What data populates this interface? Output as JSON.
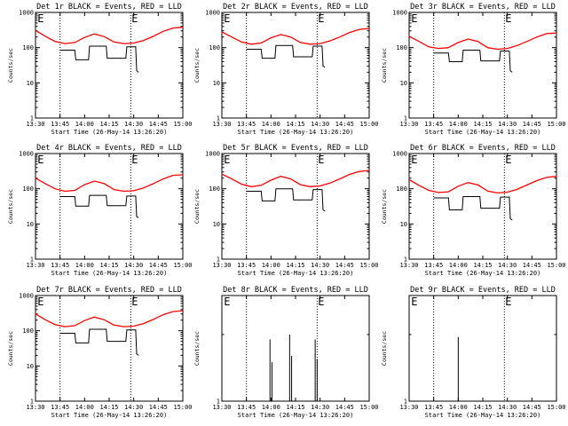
{
  "figure": {
    "background": "#ffffff",
    "events_color": "#000000",
    "lld_color": "#ff0000",
    "x_tick_labels": [
      "13:30",
      "13:45",
      "14:00",
      "14:15",
      "14:30",
      "14:45",
      "15:00"
    ],
    "y_tick_labels": [
      "1",
      "10",
      "100",
      "1000"
    ],
    "y_label": "Counts/sec",
    "x_label": "Start Time (26-May-14 13:26:20)",
    "e_marker": "E"
  },
  "chart_data": [
    {
      "type": "line",
      "title": "Det 1r BLACK = Events, RED = LLD",
      "ylim": [
        1,
        1000
      ],
      "y_scale": "log",
      "series": [
        {
          "name": "Events",
          "color": "#000000",
          "x": [
            13.75,
            13.9,
            13.91,
            14.04,
            14.05,
            14.22,
            14.23,
            14.42,
            14.43,
            14.52,
            14.53,
            14.55
          ],
          "y": [
            85,
            85,
            45,
            45,
            110,
            110,
            50,
            50,
            105,
            105,
            22,
            20
          ]
        },
        {
          "name": "LLD",
          "color": "#ff0000",
          "x": [
            13.5,
            13.6,
            13.7,
            13.8,
            13.9,
            14.0,
            14.1,
            14.2,
            14.3,
            14.4,
            14.5,
            14.6,
            14.7,
            14.8,
            14.9,
            15.0
          ],
          "y": [
            310,
            210,
            150,
            130,
            140,
            195,
            245,
            205,
            145,
            130,
            135,
            160,
            210,
            290,
            360,
            380
          ]
        }
      ]
    },
    {
      "type": "line",
      "title": "Det 2r BLACK = Events, RED = LLD",
      "ylim": [
        1,
        1000
      ],
      "y_scale": "log",
      "series": [
        {
          "name": "Events",
          "color": "#000000",
          "x": [
            13.75,
            13.9,
            13.91,
            14.04,
            14.05,
            14.22,
            14.23,
            14.42,
            14.43,
            14.52,
            14.53,
            14.55
          ],
          "y": [
            90,
            90,
            50,
            50,
            115,
            115,
            55,
            55,
            110,
            110,
            30,
            28
          ]
        },
        {
          "name": "LLD",
          "color": "#ff0000",
          "x": [
            13.5,
            13.6,
            13.7,
            13.8,
            13.9,
            14.0,
            14.1,
            14.2,
            14.3,
            14.4,
            14.5,
            14.6,
            14.7,
            14.8,
            14.9,
            15.0
          ],
          "y": [
            280,
            200,
            145,
            125,
            135,
            190,
            235,
            200,
            140,
            125,
            130,
            155,
            200,
            270,
            330,
            350
          ]
        }
      ]
    },
    {
      "type": "line",
      "title": "Det 3r BLACK = Events, RED = LLD",
      "ylim": [
        1,
        1000
      ],
      "y_scale": "log",
      "series": [
        {
          "name": "Events",
          "color": "#000000",
          "x": [
            13.75,
            13.9,
            13.91,
            14.04,
            14.05,
            14.22,
            14.23,
            14.42,
            14.43,
            14.52,
            14.53,
            14.55
          ],
          "y": [
            70,
            70,
            40,
            40,
            85,
            85,
            42,
            42,
            80,
            80,
            22,
            20
          ]
        },
        {
          "name": "LLD",
          "color": "#ff0000",
          "x": [
            13.5,
            13.6,
            13.7,
            13.8,
            13.9,
            14.0,
            14.1,
            14.2,
            14.3,
            14.4,
            14.5,
            14.6,
            14.7,
            14.8,
            14.9,
            15.0
          ],
          "y": [
            210,
            150,
            105,
            95,
            100,
            140,
            175,
            150,
            100,
            90,
            95,
            115,
            150,
            200,
            250,
            260
          ]
        }
      ]
    },
    {
      "type": "line",
      "title": "Det 4r BLACK = Events, RED = LLD",
      "ylim": [
        1,
        1000
      ],
      "y_scale": "log",
      "series": [
        {
          "name": "Events",
          "color": "#000000",
          "x": [
            13.75,
            13.9,
            13.91,
            14.04,
            14.05,
            14.22,
            14.23,
            14.42,
            14.43,
            14.52,
            14.53,
            14.55
          ],
          "y": [
            60,
            60,
            32,
            32,
            65,
            65,
            33,
            33,
            62,
            62,
            16,
            15
          ]
        },
        {
          "name": "LLD",
          "color": "#ff0000",
          "x": [
            13.5,
            13.6,
            13.7,
            13.8,
            13.9,
            14.0,
            14.1,
            14.2,
            14.3,
            14.4,
            14.5,
            14.6,
            14.7,
            14.8,
            14.9,
            15.0
          ],
          "y": [
            200,
            140,
            100,
            85,
            90,
            130,
            165,
            140,
            95,
            85,
            88,
            105,
            140,
            190,
            240,
            250
          ]
        }
      ]
    },
    {
      "type": "line",
      "title": "Det 5r BLACK = Events, RED = LLD",
      "ylim": [
        1,
        1000
      ],
      "y_scale": "log",
      "series": [
        {
          "name": "Events",
          "color": "#000000",
          "x": [
            13.75,
            13.9,
            13.91,
            14.04,
            14.05,
            14.22,
            14.23,
            14.42,
            14.43,
            14.52,
            14.53,
            14.55
          ],
          "y": [
            85,
            85,
            45,
            45,
            100,
            100,
            48,
            48,
            95,
            95,
            25,
            23
          ]
        },
        {
          "name": "LLD",
          "color": "#ff0000",
          "x": [
            13.5,
            13.6,
            13.7,
            13.8,
            13.9,
            14.0,
            14.1,
            14.2,
            14.3,
            14.4,
            14.5,
            14.6,
            14.7,
            14.8,
            14.9,
            15.0
          ],
          "y": [
            260,
            190,
            135,
            115,
            125,
            175,
            225,
            190,
            130,
            115,
            120,
            145,
            190,
            255,
            310,
            330
          ]
        }
      ]
    },
    {
      "type": "line",
      "title": "Det 6r BLACK = Events, RED = LLD",
      "ylim": [
        1,
        1000
      ],
      "y_scale": "log",
      "series": [
        {
          "name": "Events",
          "color": "#000000",
          "x": [
            13.75,
            13.9,
            13.91,
            14.04,
            14.05,
            14.22,
            14.23,
            14.42,
            14.43,
            14.52,
            14.53,
            14.55
          ],
          "y": [
            55,
            55,
            25,
            25,
            60,
            60,
            28,
            28,
            58,
            58,
            14,
            13
          ]
        },
        {
          "name": "LLD",
          "color": "#ff0000",
          "x": [
            13.5,
            13.6,
            13.7,
            13.8,
            13.9,
            14.0,
            14.1,
            14.2,
            14.3,
            14.4,
            14.5,
            14.6,
            14.7,
            14.8,
            14.9,
            15.0
          ],
          "y": [
            180,
            125,
            90,
            78,
            82,
            118,
            150,
            128,
            86,
            76,
            80,
            96,
            128,
            170,
            210,
            225
          ]
        }
      ]
    },
    {
      "type": "line",
      "title": "Det 7r BLACK = Events, RED = LLD",
      "ylim": [
        1,
        1000
      ],
      "y_scale": "log",
      "series": [
        {
          "name": "Events",
          "color": "#000000",
          "x": [
            13.75,
            13.9,
            13.91,
            14.04,
            14.05,
            14.22,
            14.23,
            14.42,
            14.43,
            14.52,
            14.53,
            14.55
          ],
          "y": [
            85,
            85,
            45,
            45,
            110,
            110,
            50,
            50,
            105,
            105,
            22,
            20
          ]
        },
        {
          "name": "LLD",
          "color": "#ff0000",
          "x": [
            13.5,
            13.6,
            13.7,
            13.8,
            13.9,
            14.0,
            14.1,
            14.2,
            14.3,
            14.4,
            14.5,
            14.6,
            14.7,
            14.8,
            14.9,
            15.0
          ],
          "y": [
            300,
            205,
            150,
            130,
            140,
            195,
            245,
            205,
            145,
            130,
            135,
            160,
            210,
            285,
            350,
            370
          ]
        }
      ]
    },
    {
      "type": "line",
      "title": "Det 8r BLACK = Events, RED = LLD",
      "ylim": [
        1,
        3
      ],
      "y_scale": "log",
      "series": [
        {
          "name": "Events",
          "color": "#000000",
          "spikes": true,
          "x": [
            13.99,
            14.01,
            14.19,
            14.21,
            14.45,
            14.47
          ],
          "y": [
            1.9,
            1.5,
            2.0,
            1.6,
            1.9,
            1.55
          ]
        }
      ]
    },
    {
      "type": "line",
      "title": "Det 9r BLACK = Events, RED = LLD",
      "ylim": [
        1,
        3
      ],
      "y_scale": "log",
      "series": [
        {
          "name": "Events",
          "color": "#000000",
          "spikes": true,
          "x": [
            14.0
          ],
          "y": [
            1.95
          ]
        }
      ]
    }
  ]
}
